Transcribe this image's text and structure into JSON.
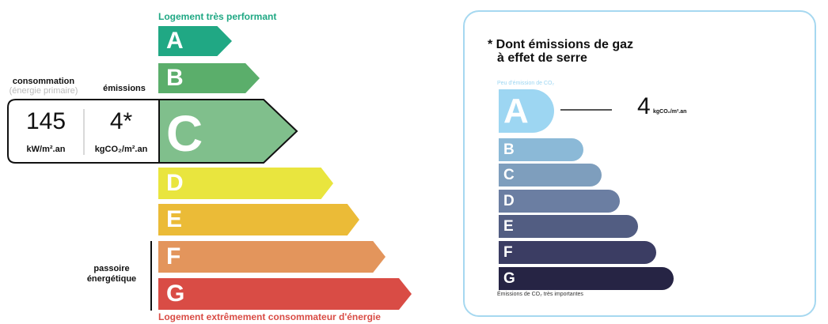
{
  "left_label": {
    "top": "Logement très performant",
    "bottom": "Logement extrêmement consommateur d'énergie",
    "consumption_title": "consommation",
    "consumption_subtitle": "(énergie primaire)",
    "emissions_title": "émissions",
    "consumption_value": "145",
    "consumption_unit": "kW/m².an",
    "emissions_value": "4*",
    "emissions_unit": "kgCO₂/m².an",
    "passoire": "passoire énergétique",
    "current_class": "C",
    "classes": [
      {
        "letter": "A",
        "color": "#20a884"
      },
      {
        "letter": "B",
        "color": "#5bae6b"
      },
      {
        "letter": "C",
        "color": "#80bf8c"
      },
      {
        "letter": "D",
        "color": "#e9e53e"
      },
      {
        "letter": "E",
        "color": "#ebbb37"
      },
      {
        "letter": "F",
        "color": "#e3955c"
      },
      {
        "letter": "G",
        "color": "#d94c45"
      }
    ]
  },
  "right_label": {
    "title_line1": "* Dont émissions de gaz",
    "title_line2": "à effet de serre",
    "top_caption": "Peu d'émission de CO₂",
    "bottom_caption": "Émissions de CO₂ très importantes",
    "value": "4",
    "unit": "kgCO₂/m².an",
    "current_class": "A",
    "classes": [
      {
        "letter": "A",
        "color": "#9dd6f2"
      },
      {
        "letter": "B",
        "color": "#8bb9d7"
      },
      {
        "letter": "C",
        "color": "#7e9ebd"
      },
      {
        "letter": "D",
        "color": "#6b7ea2"
      },
      {
        "letter": "E",
        "color": "#525d82"
      },
      {
        "letter": "F",
        "color": "#3b3d63"
      },
      {
        "letter": "G",
        "color": "#262444"
      }
    ]
  }
}
